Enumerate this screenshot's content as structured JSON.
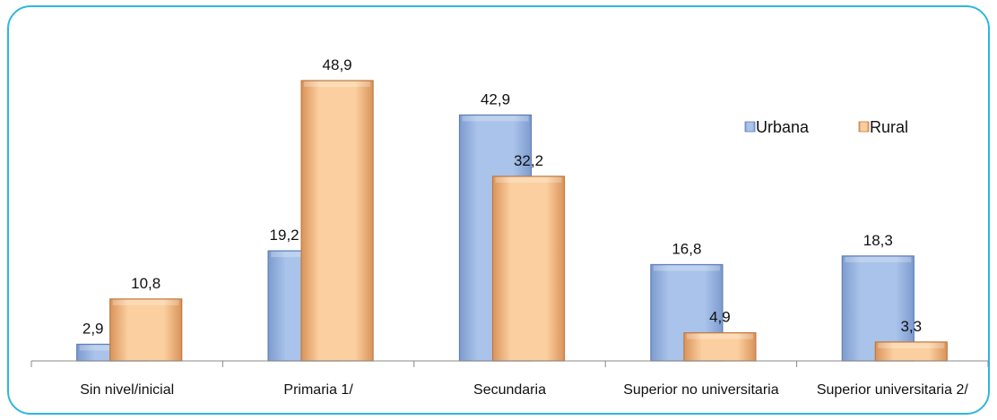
{
  "chart_data": {
    "type": "bar",
    "title": "",
    "xlabel": "",
    "ylabel": "",
    "categories": [
      "Sin nivel/inicial",
      "Primaria 1/",
      "Secundaria",
      "Superior no universitaria",
      "Superior universitaria 2/"
    ],
    "series": [
      {
        "name": "Urbana",
        "values": [
          2.9,
          19.2,
          42.9,
          16.8,
          18.3
        ],
        "labels": [
          "2,9",
          "19,2",
          "42,9",
          "16,8",
          "18,3"
        ],
        "color": "#9db8e2"
      },
      {
        "name": "Rural",
        "values": [
          10.8,
          48.9,
          32.2,
          4.9,
          3.3
        ],
        "labels": [
          "10,8",
          "48,9",
          "32,2",
          "4,9",
          "3,3"
        ],
        "color": "#f7c08c"
      }
    ],
    "ylim": [
      0,
      50
    ],
    "grid": false,
    "legend": "top-right",
    "colors": {
      "frame": "#2fb6e0",
      "axis": "#888888"
    }
  }
}
